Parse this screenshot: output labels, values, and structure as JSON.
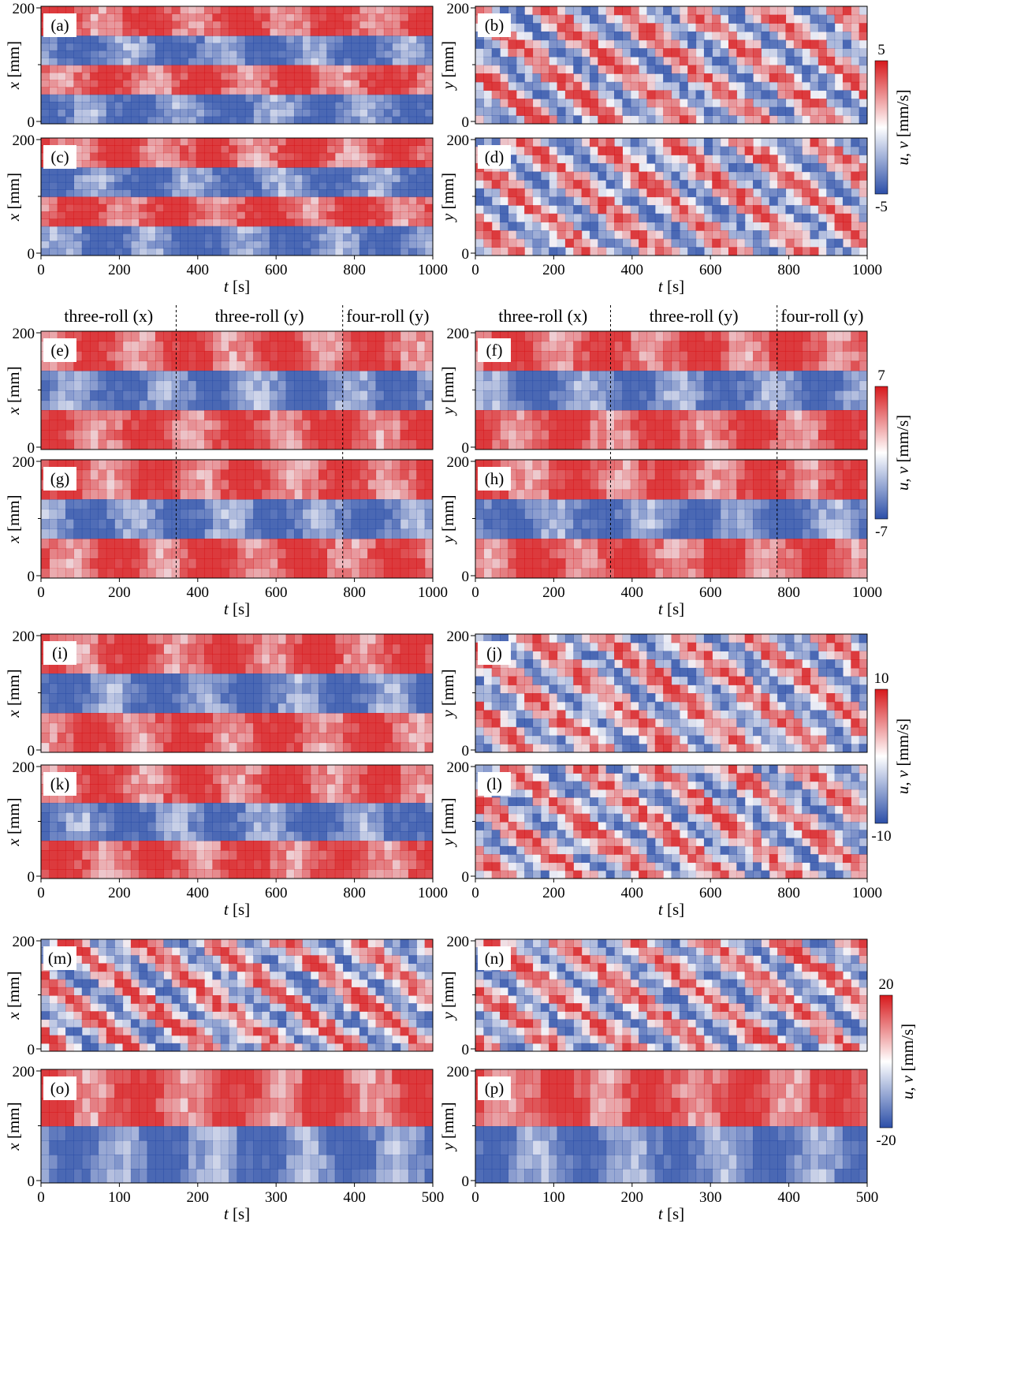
{
  "colors": {
    "positive": "#d7191c",
    "negative": "#2c4fa8",
    "zero": "#ffffff"
  },
  "chart_data": {
    "type": "heatmap",
    "groups": [
      {
        "t_ticks": [
          "0",
          "200",
          "400",
          "600",
          "800",
          "1000"
        ],
        "t_max": 1000,
        "xlabel_var": "t",
        "xlabel_unit": "[s]",
        "colorbar": {
          "max_label": "5",
          "min_label": "-5",
          "vmin": -5,
          "vmax": 5,
          "label_vars": "u, v",
          "label_unit": "[mm/s]"
        },
        "panels": [
          {
            "id": "a",
            "label": "(a)",
            "ylabel_var": "x",
            "ylabel_unit": "[mm]",
            "y_ticks": [
              "200",
              "0"
            ],
            "bands": 4
          },
          {
            "id": "b",
            "label": "(b)",
            "ylabel_var": "y",
            "ylabel_unit": "[mm]",
            "y_ticks": [
              "200",
              "0"
            ],
            "bands": 0
          },
          {
            "id": "c",
            "label": "(c)",
            "ylabel_var": "x",
            "ylabel_unit": "[mm]",
            "y_ticks": [
              "200",
              "0"
            ],
            "bands": 4
          },
          {
            "id": "d",
            "label": "(d)",
            "ylabel_var": "y",
            "ylabel_unit": "[mm]",
            "y_ticks": [
              "200",
              "0"
            ],
            "bands": 0
          }
        ]
      },
      {
        "t_ticks": [
          "0",
          "200",
          "400",
          "600",
          "800",
          "1000"
        ],
        "t_max": 1000,
        "xlabel_var": "t",
        "xlabel_unit": "[s]",
        "regimes": [
          {
            "label": "three-roll (x)",
            "t_start": 0,
            "t_end": 345
          },
          {
            "label": "three-roll (y)",
            "t_start": 345,
            "t_end": 770
          },
          {
            "label": "four-roll (y)",
            "t_start": 770,
            "t_end": 1000
          }
        ],
        "colorbar": {
          "max_label": "7",
          "min_label": "-7",
          "vmin": -7,
          "vmax": 7,
          "label_vars": "u, v",
          "label_unit": "[mm/s]"
        },
        "panels": [
          {
            "id": "e",
            "label": "(e)",
            "ylabel_var": "x",
            "ylabel_unit": "[mm]",
            "y_ticks": [
              "200",
              "0"
            ],
            "bands": 3
          },
          {
            "id": "f",
            "label": "(f)",
            "ylabel_var": "y",
            "ylabel_unit": "[mm]",
            "y_ticks": [
              "200",
              "0"
            ],
            "bands": 3
          },
          {
            "id": "g",
            "label": "(g)",
            "ylabel_var": "x",
            "ylabel_unit": "[mm]",
            "y_ticks": [
              "200",
              "0"
            ],
            "bands": 3
          },
          {
            "id": "h",
            "label": "(h)",
            "ylabel_var": "y",
            "ylabel_unit": "[mm]",
            "y_ticks": [
              "200",
              "0"
            ],
            "bands": 3
          }
        ]
      },
      {
        "t_ticks": [
          "0",
          "200",
          "400",
          "600",
          "800",
          "1000"
        ],
        "t_max": 1000,
        "xlabel_var": "t",
        "xlabel_unit": "[s]",
        "colorbar": {
          "max_label": "10",
          "min_label": "-10",
          "vmin": -10,
          "vmax": 10,
          "label_vars": "u, v",
          "label_unit": "[mm/s]"
        },
        "panels": [
          {
            "id": "i",
            "label": "(i)",
            "ylabel_var": "x",
            "ylabel_unit": "[mm]",
            "y_ticks": [
              "200",
              "0"
            ],
            "bands": 3
          },
          {
            "id": "j",
            "label": "(j)",
            "ylabel_var": "y",
            "ylabel_unit": "[mm]",
            "y_ticks": [
              "200",
              "0"
            ],
            "bands": 0
          },
          {
            "id": "k",
            "label": "(k)",
            "ylabel_var": "x",
            "ylabel_unit": "[mm]",
            "y_ticks": [
              "200",
              "0"
            ],
            "bands": 3
          },
          {
            "id": "l",
            "label": "(l)",
            "ylabel_var": "y",
            "ylabel_unit": "[mm]",
            "y_ticks": [
              "200",
              "0"
            ],
            "bands": 0
          }
        ]
      },
      {
        "t_ticks": [
          "0",
          "100",
          "200",
          "300",
          "400",
          "500"
        ],
        "t_max": 500,
        "xlabel_var": "t",
        "xlabel_unit": "[s]",
        "colorbar": {
          "max_label": "20",
          "min_label": "-20",
          "vmin": -20,
          "vmax": 20,
          "label_vars": "u, v",
          "label_unit": "[mm/s]"
        },
        "panels": [
          {
            "id": "m",
            "label": "(m)",
            "ylabel_var": "x",
            "ylabel_unit": "[mm]",
            "y_ticks": [
              "200",
              "0"
            ],
            "bands": 0
          },
          {
            "id": "n",
            "label": "(n)",
            "ylabel_var": "y",
            "ylabel_unit": "[mm]",
            "y_ticks": [
              "200",
              "0"
            ],
            "bands": 0
          },
          {
            "id": "o",
            "label": "(o)",
            "ylabel_var": "x",
            "ylabel_unit": "[mm]",
            "y_ticks": [
              "200",
              "0"
            ],
            "bands": 2
          },
          {
            "id": "p",
            "label": "(p)",
            "ylabel_var": "y",
            "ylabel_unit": "[mm]",
            "y_ticks": [
              "200",
              "0"
            ],
            "bands": 2
          }
        ]
      }
    ]
  }
}
